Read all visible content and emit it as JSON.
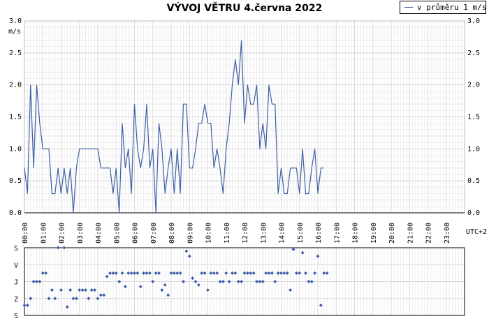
{
  "title": "VÝVOJ VĚTRU  4.června 2022",
  "legend": {
    "label": "v průměru 1 m/s"
  },
  "utc_label": "UTC+2",
  "colors": {
    "line": "#3e5fa5",
    "points": "#3e5fa5",
    "grid": "#d8d8d8",
    "axis": "#000000"
  },
  "chart_data": [
    {
      "type": "line",
      "title": "VÝVOJ VĚTRU  4.června 2022",
      "ylabel": "m/s",
      "ylim": [
        0,
        3.0
      ],
      "yticks": [
        "0.0",
        "0.5",
        "1.0",
        "1.5",
        "2.0",
        "2.5",
        "3.0"
      ],
      "xlim": [
        0,
        24
      ],
      "xticks": [
        "00:00",
        "01:00",
        "02:00",
        "03:00",
        "04:00",
        "05:00",
        "06:00",
        "07:00",
        "08:00",
        "09:00",
        "10:00",
        "11:00",
        "12:00",
        "13:00",
        "14:00",
        "15:00",
        "16:00",
        "17:00",
        "18:00",
        "19:00",
        "20:00",
        "21:00",
        "22:00",
        "23:00"
      ],
      "grid": true,
      "legend_position": "top-right",
      "series": [
        {
          "name": "v průměru 1 m/s",
          "x_interval_minutes": 10,
          "values": [
            0.7,
            0.3,
            2.0,
            0.7,
            2.0,
            1.4,
            1.0,
            1.0,
            1.0,
            0.3,
            0.3,
            0.7,
            0.3,
            0.7,
            0.3,
            0.7,
            0.0,
            0.7,
            1.0,
            1.0,
            1.0,
            1.0,
            1.0,
            1.0,
            1.0,
            0.7,
            0.7,
            0.7,
            0.7,
            0.3,
            0.7,
            0.0,
            1.4,
            0.7,
            1.0,
            0.3,
            1.7,
            1.0,
            0.7,
            1.0,
            1.7,
            0.7,
            1.0,
            0.0,
            1.4,
            1.0,
            0.3,
            0.7,
            1.0,
            0.3,
            1.0,
            0.3,
            1.7,
            1.7,
            0.7,
            0.7,
            1.0,
            1.4,
            1.4,
            1.7,
            1.4,
            1.4,
            0.7,
            1.0,
            0.7,
            0.3,
            1.0,
            1.4,
            2.0,
            2.4,
            2.0,
            2.7,
            1.4,
            2.0,
            1.7,
            1.7,
            2.0,
            1.0,
            1.4,
            1.0,
            2.0,
            1.7,
            1.7,
            0.3,
            0.7,
            0.3,
            0.3,
            0.7,
            0.7,
            0.7,
            0.3,
            1.0,
            0.3,
            0.3,
            0.7,
            1.0,
            0.3,
            0.7,
            0.7
          ]
        }
      ]
    },
    {
      "type": "scatter",
      "title": "",
      "yticks": [
        "S",
        "V",
        "J",
        "Z",
        "S"
      ],
      "ylim": [
        0,
        4
      ],
      "xlim": [
        0,
        24
      ],
      "grid": true,
      "series": [
        {
          "x_interval_minutes": 10,
          "values": [
            0.6,
            0.6,
            1.0,
            2.0,
            2.0,
            2.0,
            2.5,
            2.5,
            1.0,
            1.5,
            1.0,
            4.0,
            1.5,
            4.0,
            0.5,
            1.5,
            1.0,
            1.0,
            1.5,
            1.5,
            1.5,
            1.0,
            1.5,
            1.5,
            1.0,
            1.2,
            1.2,
            2.3,
            2.5,
            2.5,
            2.5,
            2.0,
            2.5,
            1.7,
            2.5,
            2.5,
            2.5,
            2.5,
            1.7,
            2.5,
            2.5,
            2.5,
            2.0,
            2.5,
            2.5,
            1.5,
            1.8,
            1.2,
            2.5,
            2.5,
            2.5,
            2.5,
            2.0,
            3.8,
            3.5,
            2.2,
            2.0,
            1.8,
            2.5,
            2.5,
            1.5,
            2.5,
            2.5,
            2.5,
            2.0,
            2.0,
            2.5,
            2.0,
            2.5,
            2.5,
            2.0,
            2.0,
            2.5,
            2.5,
            2.5,
            2.5,
            2.0,
            2.0,
            2.0,
            2.5,
            2.5,
            2.5,
            2.0,
            2.5,
            2.5,
            2.5,
            2.5,
            1.5,
            3.9,
            2.5,
            2.5,
            3.7,
            2.5,
            2.0,
            2.0,
            2.5,
            3.5,
            0.6,
            2.5,
            2.5
          ]
        }
      ]
    }
  ]
}
